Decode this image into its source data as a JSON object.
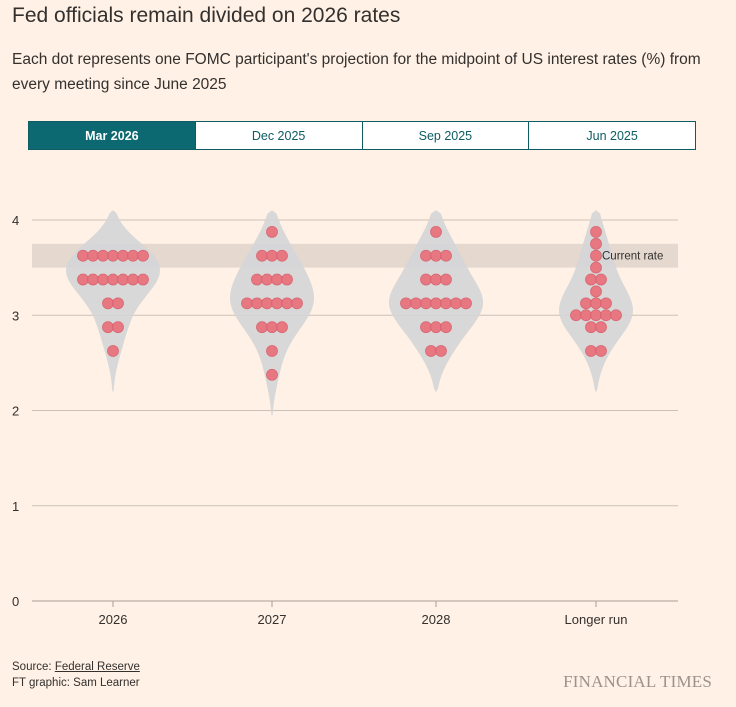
{
  "title": "Fed officials remain divided on 2026 rates",
  "subtitle": "Each dot represents one FOMC participant's projection for the midpoint of US interest rates (%) from every meeting since June 2025",
  "tabs": [
    {
      "label": "Mar 2026",
      "active": true
    },
    {
      "label": "Dec 2025",
      "active": false
    },
    {
      "label": "Sep 2025",
      "active": false
    },
    {
      "label": "Jun 2025",
      "active": false
    }
  ],
  "colors": {
    "dot": "#e8727c",
    "violin": "#d4d5d7",
    "band": "#e5d8cf",
    "grid": "#ccc1b7",
    "accent": "#0d6971"
  },
  "chart_data": {
    "type": "scatter",
    "subtype": "beeswarm-violin",
    "title": "Fed officials remain divided on 2026 rates",
    "xlabel": "",
    "ylabel": "",
    "categories": [
      "2026",
      "2027",
      "2028",
      "Longer run"
    ],
    "ylim": [
      0,
      4
    ],
    "yticks": [
      0,
      1,
      2,
      3,
      4
    ],
    "grid": true,
    "current_rate": {
      "label": "Current rate",
      "low": 3.5,
      "high": 3.75
    },
    "series": [
      {
        "name": "2026",
        "values": [
          3.625,
          3.625,
          3.625,
          3.625,
          3.625,
          3.625,
          3.625,
          3.375,
          3.375,
          3.375,
          3.375,
          3.375,
          3.375,
          3.375,
          3.125,
          3.125,
          2.875,
          2.875,
          2.625
        ]
      },
      {
        "name": "2027",
        "values": [
          3.875,
          3.625,
          3.625,
          3.625,
          3.375,
          3.375,
          3.375,
          3.375,
          3.125,
          3.125,
          3.125,
          3.125,
          3.125,
          3.125,
          2.875,
          2.875,
          2.875,
          2.625,
          2.375
        ]
      },
      {
        "name": "2028",
        "values": [
          3.875,
          3.625,
          3.625,
          3.625,
          3.375,
          3.375,
          3.375,
          3.125,
          3.125,
          3.125,
          3.125,
          3.125,
          3.125,
          3.125,
          2.875,
          2.875,
          2.875,
          2.625,
          2.625
        ]
      },
      {
        "name": "Longer run",
        "values": [
          3.875,
          3.75,
          3.625,
          3.5,
          3.375,
          3.375,
          3.25,
          3.125,
          3.125,
          3.125,
          3.0,
          3.0,
          3.0,
          3.0,
          3.0,
          2.875,
          2.875,
          2.625,
          2.625
        ]
      }
    ],
    "violin_range": [
      {
        "name": "2026",
        "min": 2.2,
        "max": 4.1
      },
      {
        "name": "2027",
        "min": 1.95,
        "max": 4.1
      },
      {
        "name": "2028",
        "min": 2.2,
        "max": 4.1
      },
      {
        "name": "Longer run",
        "min": 2.2,
        "max": 4.1
      }
    ]
  },
  "footer": {
    "source_prefix": "Source: ",
    "source_link": "Federal Reserve",
    "credit": "FT graphic: Sam Learner",
    "brand": "FINANCIAL TIMES"
  }
}
